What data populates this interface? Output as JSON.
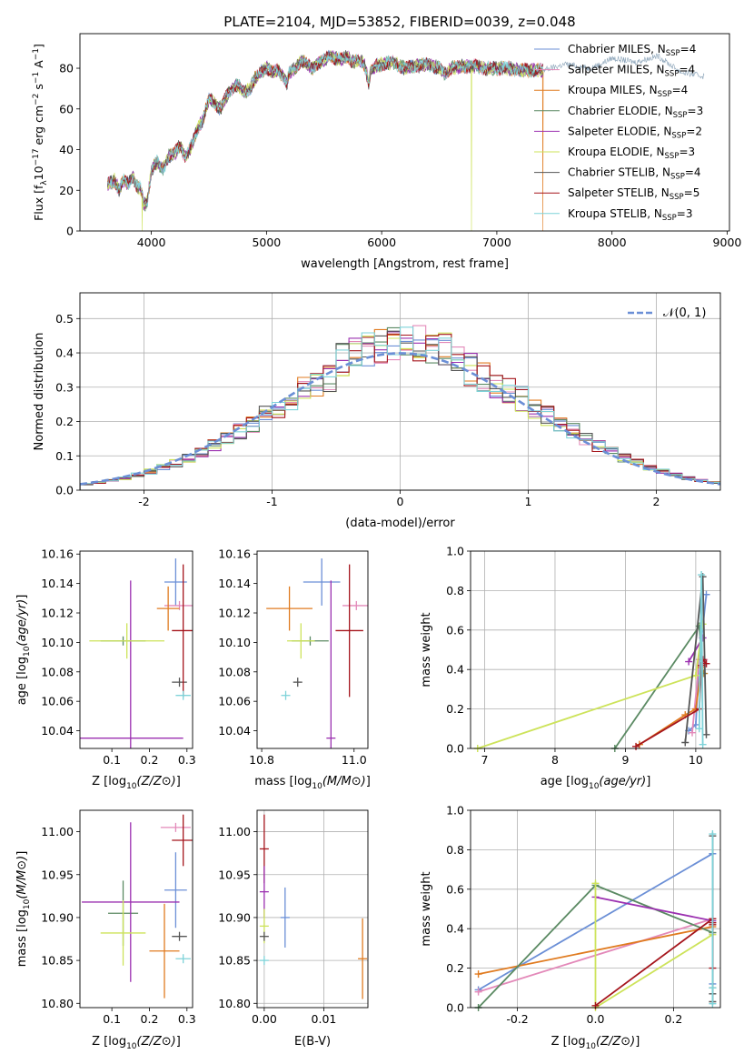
{
  "figure": {
    "title": "PLATE=2104, MJD=53852, FIBERID=0039, z=0.048"
  },
  "colors": {
    "Chabrier MILES": "#6b8fd6",
    "Salpeter MILES": "#e389b9",
    "Kroupa MILES": "#e07b20",
    "Chabrier ELODIE": "#5b8a63",
    "Salpeter ELODIE": "#9b30b0",
    "Kroupa ELODIE": "#cde35a",
    "Chabrier STELIB": "#555555",
    "Salpeter STELIB": "#a5151c",
    "Kroupa STELIB": "#7fd3d9"
  },
  "chart_data": [
    {
      "id": "spectrum",
      "type": "line",
      "xlabel": "wavelength [Angstrom, rest frame]",
      "ylabel": "Flux [fλ10⁻¹⁷ erg cm⁻² s⁻¹ A⁻¹]",
      "xlim": [
        3380,
        9020
      ],
      "ylim": [
        0,
        97
      ],
      "xticks": [
        4000,
        5000,
        6000,
        7000,
        8000,
        9000
      ],
      "yticks": [
        0,
        20,
        40,
        60,
        80
      ],
      "grid": false,
      "legend": "top-right",
      "spectrum_profile": {
        "x": [
          3620,
          3680,
          3720,
          3760,
          3800,
          3840,
          3870,
          3905,
          3935,
          3965,
          4000,
          4050,
          4100,
          4150,
          4200,
          4250,
          4300,
          4350,
          4400,
          4450,
          4500,
          4550,
          4600,
          4650,
          4700,
          4750,
          4800,
          4860,
          4900,
          4950,
          5000,
          5050,
          5100,
          5150,
          5175,
          5200,
          5250,
          5300,
          5350,
          5400,
          5450,
          5500,
          5550,
          5600,
          5650,
          5700,
          5750,
          5800,
          5850,
          5890,
          5900,
          5950,
          6000,
          6100,
          6200,
          6300,
          6400,
          6500,
          6563,
          6600,
          6700,
          6800,
          6900,
          7000,
          7100,
          7200,
          7300,
          7400
        ],
        "y": [
          23,
          25,
          20,
          25,
          23,
          27,
          22,
          21,
          13,
          14,
          30,
          34,
          30,
          37,
          38,
          42,
          36,
          42,
          50,
          55,
          65,
          63,
          60,
          66,
          70,
          72,
          68,
          70,
          75,
          78,
          80,
          78,
          79,
          76,
          72,
          78,
          80,
          84,
          82,
          80,
          83,
          84,
          86,
          85,
          84,
          86,
          83,
          84,
          82,
          72,
          78,
          81,
          82,
          83,
          80,
          81,
          82,
          80,
          77,
          80,
          81,
          81,
          80,
          80,
          80,
          79,
          79,
          79
        ]
      },
      "continuation": {
        "x": [
          7400,
          7600,
          7800,
          7900,
          8000,
          8200,
          8400,
          8600,
          8800
        ],
        "y": [
          79,
          82,
          80,
          82,
          85,
          83,
          86,
          78,
          76
        ]
      },
      "dropouts": [
        {
          "x": 3920,
          "series": "Kroupa ELODIE"
        },
        {
          "x": 6780,
          "series": "Kroupa ELODIE"
        },
        {
          "x": 7400,
          "series": "Kroupa MILES"
        }
      ],
      "series": [
        {
          "name": "Chabrier MILES, NSSP=4",
          "label": "Chabrier MILES, N",
          "sub": "SSP",
          "suffix": "=4",
          "key": "Chabrier MILES"
        },
        {
          "name": "Salpeter MILES, NSSP=4",
          "label": "Salpeter MILES, N",
          "sub": "SSP",
          "suffix": "=4",
          "key": "Salpeter MILES"
        },
        {
          "name": "Kroupa MILES, NSSP=4",
          "label": "Kroupa MILES, N",
          "sub": "SSP",
          "suffix": "=4",
          "key": "Kroupa MILES"
        },
        {
          "name": "Chabrier ELODIE, NSSP=3",
          "label": "Chabrier ELODIE, N",
          "sub": "SSP",
          "suffix": "=3",
          "key": "Chabrier ELODIE"
        },
        {
          "name": "Salpeter ELODIE, NSSP=2",
          "label": "Salpeter ELODIE, N",
          "sub": "SSP",
          "suffix": "=2",
          "key": "Salpeter ELODIE"
        },
        {
          "name": "Kroupa ELODIE, NSSP=3",
          "label": "Kroupa ELODIE, N",
          "sub": "SSP",
          "suffix": "=3",
          "key": "Kroupa ELODIE"
        },
        {
          "name": "Chabrier STELIB, NSSP=4",
          "label": "Chabrier STELIB, N",
          "sub": "SSP",
          "suffix": "=4",
          "key": "Chabrier STELIB"
        },
        {
          "name": "Salpeter STELIB, NSSP=5",
          "label": "Salpeter STELIB, N",
          "sub": "SSP",
          "suffix": "=5",
          "key": "Salpeter STELIB"
        },
        {
          "name": "Kroupa STELIB, NSSP=3",
          "label": "Kroupa STELIB, N",
          "sub": "SSP",
          "suffix": "=3",
          "key": "Kroupa STELIB"
        }
      ]
    },
    {
      "id": "residuals",
      "type": "line",
      "xlabel": "(data-model)/error",
      "ylabel": "Normed distribution",
      "xlim": [
        -2.5,
        2.5
      ],
      "ylim": [
        0,
        0.575
      ],
      "xticks": [
        -2,
        -1,
        0,
        1,
        2
      ],
      "yticks": [
        0.0,
        0.1,
        0.2,
        0.3,
        0.4,
        0.5
      ],
      "grid": true,
      "legend": "top-right",
      "reference_label": "𝒩(0, 1)",
      "reference_color": "#6b8fd6",
      "bin_width": 0.1,
      "bin_start": -2.5
    },
    {
      "id": "Z-age",
      "type": "scatter",
      "xlabel": "Z [log10(Z/Z⊙)]",
      "ylabel": "age  [log10(age/yr)]",
      "xlim": [
        0.015,
        0.315
      ],
      "ylim": [
        10.028,
        10.162
      ],
      "xticks": [
        0.1,
        0.2,
        0.3
      ],
      "yticks": [
        10.04,
        10.06,
        10.08,
        10.1,
        10.12,
        10.14,
        10.16
      ],
      "grid": false,
      "points": [
        {
          "key": "Chabrier MILES",
          "x": 0.27,
          "y": 10.141,
          "xerr": 0.03,
          "yerr": 0.016
        },
        {
          "key": "Salpeter MILES",
          "x": 0.28,
          "y": 10.125,
          "xerr": 0.04,
          "yerr": 0.0
        },
        {
          "key": "Kroupa MILES",
          "x": 0.25,
          "y": 10.123,
          "xerr": 0.03,
          "yerr": 0.015
        },
        {
          "key": "Chabrier ELODIE",
          "x": 0.13,
          "y": 10.101,
          "xerr": 0.06,
          "yerr": 0.0
        },
        {
          "key": "Salpeter ELODIE",
          "x": 0.15,
          "y": 10.035,
          "xerr": 0.14,
          "yerr": 0.107
        },
        {
          "key": "Kroupa ELODIE",
          "x": 0.14,
          "y": 10.101,
          "xerr": 0.1,
          "yerr": 0.012
        },
        {
          "key": "Chabrier STELIB",
          "x": 0.28,
          "y": 10.073,
          "xerr": 0.02,
          "yerr": 0.0
        },
        {
          "key": "Salpeter STELIB",
          "x": 0.29,
          "y": 10.108,
          "xerr": 0.03,
          "yerr": 0.045
        },
        {
          "key": "Kroupa STELIB",
          "x": 0.29,
          "y": 10.064,
          "xerr": 0.02,
          "yerr": 0.0
        }
      ]
    },
    {
      "id": "mass-age",
      "type": "scatter",
      "xlabel": "mass [log10(M/M⊙)]",
      "ylabel": "",
      "xlim": [
        10.79,
        11.03
      ],
      "ylim": [
        10.028,
        10.162
      ],
      "xticks": [
        10.8,
        11.0
      ],
      "yticks": [
        10.04,
        10.06,
        10.08,
        10.1,
        10.12,
        10.14,
        10.16
      ],
      "grid": false,
      "points": [
        {
          "key": "Chabrier MILES",
          "x": 10.93,
          "y": 10.141,
          "xerr": 0.04,
          "yerr": 0.016
        },
        {
          "key": "Salpeter MILES",
          "x": 11.005,
          "y": 10.125,
          "xerr": 0.03,
          "yerr": 0.0
        },
        {
          "key": "Kroupa MILES",
          "x": 10.86,
          "y": 10.123,
          "xerr": 0.05,
          "yerr": 0.015
        },
        {
          "key": "Chabrier ELODIE",
          "x": 10.905,
          "y": 10.101,
          "xerr": 0.04,
          "yerr": 0.0
        },
        {
          "key": "Salpeter ELODIE",
          "x": 10.95,
          "y": 10.035,
          "xerr": 0.0,
          "yerr": 0.107
        },
        {
          "key": "Kroupa ELODIE",
          "x": 10.885,
          "y": 10.101,
          "xerr": 0.03,
          "yerr": 0.012
        },
        {
          "key": "Chabrier STELIB",
          "x": 10.878,
          "y": 10.073,
          "xerr": 0.008,
          "yerr": 0.0
        },
        {
          "key": "Salpeter STELIB",
          "x": 10.99,
          "y": 10.108,
          "xerr": 0.03,
          "yerr": 0.045
        },
        {
          "key": "Kroupa STELIB",
          "x": 10.852,
          "y": 10.064,
          "xerr": 0.008,
          "yerr": 0.0
        }
      ]
    },
    {
      "id": "age-weight",
      "type": "line",
      "xlabel": "age  [log10(age/yr)]",
      "ylabel": "mass weight",
      "xlim": [
        6.8,
        10.35
      ],
      "ylim": [
        0,
        1.0
      ],
      "xticks": [
        7,
        8,
        9,
        10
      ],
      "yticks": [
        0.0,
        0.2,
        0.4,
        0.6,
        0.8,
        1.0
      ],
      "grid": true,
      "series": [
        {
          "key": "Chabrier MILES",
          "points": [
            [
              9.9,
              0.09
            ],
            [
              10.0,
              0.12
            ],
            [
              10.05,
              0.45
            ],
            [
              10.15,
              0.78
            ]
          ]
        },
        {
          "key": "Salpeter MILES",
          "points": [
            [
              9.95,
              0.08
            ],
            [
              10.05,
              0.45
            ],
            [
              10.12,
              0.45
            ],
            [
              10.15,
              0.43
            ]
          ]
        },
        {
          "key": "Kroupa MILES",
          "points": [
            [
              9.2,
              0.02
            ],
            [
              9.85,
              0.17
            ],
            [
              10.0,
              0.2
            ],
            [
              10.08,
              0.41
            ],
            [
              10.12,
              0.38
            ]
          ]
        },
        {
          "key": "Chabrier ELODIE",
          "points": [
            [
              8.85,
              0.0
            ],
            [
              10.05,
              0.62
            ],
            [
              10.1,
              0.38
            ]
          ]
        },
        {
          "key": "Salpeter ELODIE",
          "points": [
            [
              9.9,
              0.44
            ],
            [
              10.1,
              0.56
            ]
          ]
        },
        {
          "key": "Kroupa ELODIE",
          "points": [
            [
              6.9,
              0.0
            ],
            [
              10.0,
              0.37
            ],
            [
              10.1,
              0.63
            ]
          ]
        },
        {
          "key": "Chabrier STELIB",
          "points": [
            [
              9.85,
              0.03
            ],
            [
              10.1,
              0.87
            ],
            [
              10.15,
              0.07
            ]
          ]
        },
        {
          "key": "Salpeter STELIB",
          "points": [
            [
              9.15,
              0.01
            ],
            [
              10.05,
              0.2
            ],
            [
              10.08,
              0.42
            ],
            [
              10.1,
              0.45
            ],
            [
              10.15,
              0.43
            ]
          ]
        },
        {
          "key": "Kroupa STELIB",
          "points": [
            [
              10.05,
              0.1
            ],
            [
              10.08,
              0.88
            ],
            [
              10.1,
              0.02
            ]
          ]
        }
      ]
    },
    {
      "id": "Z-mass",
      "type": "scatter",
      "xlabel": "Z [log10(Z/Z⊙)]",
      "ylabel": "mass [log10(M/M⊙)]",
      "xlim": [
        0.015,
        0.315
      ],
      "ylim": [
        10.795,
        11.025
      ],
      "xticks": [
        0.1,
        0.2,
        0.3
      ],
      "yticks": [
        10.8,
        10.85,
        10.9,
        10.95,
        11.0
      ],
      "grid": false,
      "points": [
        {
          "key": "Chabrier MILES",
          "x": 0.27,
          "y": 10.932,
          "xerr": 0.03,
          "yerr": 0.044
        },
        {
          "key": "Salpeter MILES",
          "x": 0.27,
          "y": 11.005,
          "xerr": 0.04,
          "yerr": 0.0
        },
        {
          "key": "Kroupa MILES",
          "x": 0.24,
          "y": 10.861,
          "xerr": 0.04,
          "yerr": 0.055
        },
        {
          "key": "Chabrier ELODIE",
          "x": 0.13,
          "y": 10.905,
          "xerr": 0.04,
          "yerr": 0.038
        },
        {
          "key": "Salpeter ELODIE",
          "x": 0.15,
          "y": 10.918,
          "xerr": 0.13,
          "yerr": 0.093
        },
        {
          "key": "Kroupa ELODIE",
          "x": 0.13,
          "y": 10.882,
          "xerr": 0.06,
          "yerr": 0.038
        },
        {
          "key": "Chabrier STELIB",
          "x": 0.28,
          "y": 10.878,
          "xerr": 0.02,
          "yerr": 0.0
        },
        {
          "key": "Salpeter STELIB",
          "x": 0.29,
          "y": 10.99,
          "xerr": 0.03,
          "yerr": 0.03
        },
        {
          "key": "Kroupa STELIB",
          "x": 0.29,
          "y": 10.852,
          "xerr": 0.02,
          "yerr": 0.0
        }
      ]
    },
    {
      "id": "ebv-mass",
      "type": "scatter",
      "xlabel": "E(B-V)",
      "ylabel": "",
      "xlim": [
        -0.0012,
        0.0174
      ],
      "ylim": [
        10.795,
        11.025
      ],
      "xticks": [
        0.0,
        0.01
      ],
      "yticks": [
        10.8,
        10.85,
        10.9,
        10.95,
        11.0
      ],
      "grid": true,
      "points": [
        {
          "key": "Chabrier MILES",
          "x": 0.0035,
          "y": 10.9,
          "xerr": 0,
          "yerr": 0.035
        },
        {
          "key": "Kroupa MILES",
          "x": 0.0165,
          "y": 10.852,
          "xerr": 0,
          "yerr": 0.047
        },
        {
          "key": "Salpeter STELIB",
          "x": 0.0,
          "y": 10.98,
          "xerr": 0,
          "yerr": 0.04
        },
        {
          "key": "Salpeter ELODIE",
          "x": 0.0,
          "y": 10.93,
          "xerr": 0,
          "yerr": 0.03
        },
        {
          "key": "Kroupa ELODIE",
          "x": 0.0,
          "y": 10.89,
          "xerr": 0,
          "yerr": 0.02
        },
        {
          "key": "Kroupa STELIB",
          "x": 0.0,
          "y": 10.85,
          "xerr": 0,
          "yerr": 0.005
        },
        {
          "key": "Chabrier STELIB",
          "x": 0.0,
          "y": 10.878,
          "xerr": 0,
          "yerr": 0.005
        }
      ]
    },
    {
      "id": "Z-weight",
      "type": "line",
      "xlabel": "Z [log10(Z/Z⊙)]",
      "ylabel": "mass weight",
      "xlim": [
        -0.32,
        0.32
      ],
      "ylim": [
        0,
        1.0
      ],
      "xticks": [
        -0.2,
        0.0,
        0.2
      ],
      "yticks": [
        0.0,
        0.2,
        0.4,
        0.6,
        0.8,
        1.0
      ],
      "grid": true,
      "series": [
        {
          "key": "Chabrier MILES",
          "points": [
            [
              -0.3,
              0.09
            ],
            [
              0.3,
              0.78
            ],
            [
              0.3,
              0.12
            ]
          ]
        },
        {
          "key": "Salpeter MILES",
          "points": [
            [
              -0.3,
              0.08
            ],
            [
              0.3,
              0.45
            ],
            [
              0.3,
              0.43
            ]
          ]
        },
        {
          "key": "Kroupa MILES",
          "points": [
            [
              -0.3,
              0.17
            ],
            [
              0.3,
              0.41
            ],
            [
              0.3,
              0.38
            ]
          ]
        },
        {
          "key": "Chabrier ELODIE",
          "points": [
            [
              -0.3,
              0.0
            ],
            [
              0.0,
              0.62
            ],
            [
              0.3,
              0.38
            ]
          ]
        },
        {
          "key": "Salpeter ELODIE",
          "points": [
            [
              0.0,
              0.56
            ],
            [
              0.3,
              0.44
            ]
          ]
        },
        {
          "key": "Kroupa ELODIE",
          "points": [
            [
              0.0,
              0.63
            ],
            [
              0.0,
              0.0
            ],
            [
              0.3,
              0.37
            ]
          ]
        },
        {
          "key": "Chabrier STELIB",
          "points": [
            [
              0.3,
              0.87
            ],
            [
              0.3,
              0.1
            ],
            [
              0.3,
              0.07
            ],
            [
              0.3,
              0.03
            ]
          ]
        },
        {
          "key": "Salpeter STELIB",
          "points": [
            [
              0.0,
              0.01
            ],
            [
              0.3,
              0.45
            ],
            [
              0.3,
              0.43
            ],
            [
              0.3,
              0.42
            ],
            [
              0.3,
              0.2
            ]
          ]
        },
        {
          "key": "Kroupa STELIB",
          "points": [
            [
              0.3,
              0.88
            ],
            [
              0.3,
              0.1
            ],
            [
              0.3,
              0.02
            ]
          ]
        }
      ]
    }
  ]
}
